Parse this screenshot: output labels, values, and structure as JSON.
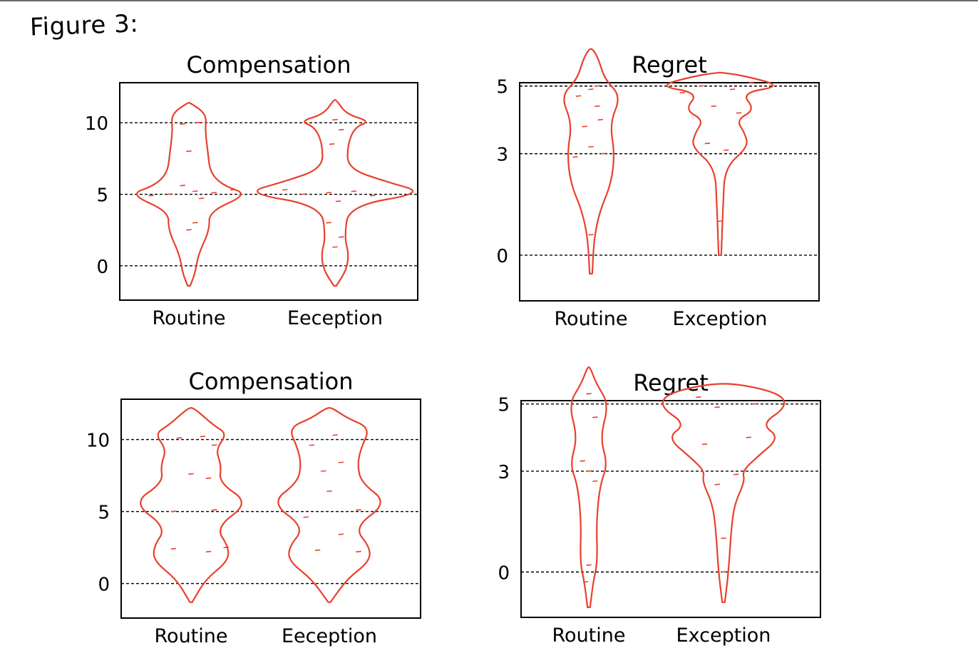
{
  "figure": {
    "label": "Figure 3:"
  },
  "colors": {
    "violin": "#e8412c",
    "axis": "#000000",
    "reference_line": "#000000"
  },
  "chart_data": [
    {
      "type": "violin",
      "title": "Compensation",
      "categories": [
        "Routine",
        "Eeception"
      ],
      "yticks": [
        0,
        5,
        10
      ],
      "ylim": [
        -2.4,
        12.8
      ],
      "grid": "dashed lines at y ticks",
      "series": [
        {
          "category": "Routine",
          "profile": [
            [
              -1.4,
              0.02
            ],
            [
              -0.5,
              0.1
            ],
            [
              0.8,
              0.15
            ],
            [
              2.5,
              0.33
            ],
            [
              3.8,
              0.32
            ],
            [
              5.0,
              0.95
            ],
            [
              5.6,
              0.55
            ],
            [
              6.5,
              0.34
            ],
            [
              8.0,
              0.3
            ],
            [
              9.5,
              0.26
            ],
            [
              10.6,
              0.28
            ],
            [
              11.4,
              0.02
            ]
          ],
          "points": [
            [
              5.0,
              -0.3
            ],
            [
              5.2,
              0.1
            ],
            [
              5.1,
              0.4
            ],
            [
              4.9,
              -0.6
            ],
            [
              5.3,
              0.7
            ],
            [
              5.6,
              -0.1
            ],
            [
              4.7,
              0.2
            ],
            [
              2.5,
              0.0
            ],
            [
              3.0,
              0.1
            ],
            [
              9.9,
              -0.1
            ],
            [
              10.0,
              0.15
            ],
            [
              8.0,
              0.0
            ]
          ]
        },
        {
          "category": "Eeception",
          "profile": [
            [
              -1.4,
              0.02
            ],
            [
              -0.3,
              0.18
            ],
            [
              0.8,
              0.22
            ],
            [
              2.0,
              0.15
            ],
            [
              4.2,
              0.22
            ],
            [
              5.1,
              1.45
            ],
            [
              5.9,
              0.8
            ],
            [
              6.8,
              0.2
            ],
            [
              8.5,
              0.2
            ],
            [
              9.7,
              0.32
            ],
            [
              10.1,
              0.56
            ],
            [
              10.6,
              0.18
            ],
            [
              11.6,
              0.02
            ]
          ],
          "points": [
            [
              5.0,
              -0.5
            ],
            [
              5.1,
              -0.1
            ],
            [
              5.2,
              0.3
            ],
            [
              4.9,
              0.6
            ],
            [
              5.3,
              -0.8
            ],
            [
              4.5,
              0.05
            ],
            [
              3.0,
              -0.1
            ],
            [
              2.0,
              0.1
            ],
            [
              1.3,
              0.0
            ],
            [
              8.5,
              -0.05
            ],
            [
              9.5,
              0.1
            ],
            [
              10.2,
              0.0
            ]
          ]
        }
      ]
    },
    {
      "type": "violin",
      "title": "Regret",
      "categories": [
        "Routine",
        "Exception"
      ],
      "yticks": [
        0,
        3,
        5
      ],
      "ylim": [
        -1.35,
        5.1
      ],
      "grid": "dashed lines at y ticks",
      "series": [
        {
          "category": "Routine",
          "profile": [
            [
              -0.55,
              0.02
            ],
            [
              0.5,
              0.05
            ],
            [
              1.3,
              0.14
            ],
            [
              2.1,
              0.32
            ],
            [
              3.0,
              0.38
            ],
            [
              3.9,
              0.3
            ],
            [
              4.7,
              0.48
            ],
            [
              5.2,
              0.22
            ],
            [
              5.8,
              0.12
            ],
            [
              6.1,
              0.03
            ]
          ],
          "points": [
            [
              4.9,
              0.0
            ],
            [
              4.7,
              -0.2
            ],
            [
              4.4,
              0.1
            ],
            [
              4.0,
              0.15
            ],
            [
              3.8,
              -0.1
            ],
            [
              3.2,
              0.0
            ],
            [
              3.0,
              0.2
            ],
            [
              2.9,
              -0.25
            ],
            [
              0.6,
              0.0
            ],
            [
              5.0,
              0.1
            ]
          ]
        },
        {
          "category": "Exception",
          "profile": [
            [
              0.0,
              0.02
            ],
            [
              1.5,
              0.05
            ],
            [
              2.6,
              0.08
            ],
            [
              3.2,
              0.45
            ],
            [
              3.6,
              0.4
            ],
            [
              4.0,
              0.26
            ],
            [
              4.3,
              0.56
            ],
            [
              4.8,
              0.34
            ],
            [
              5.0,
              1.0
            ],
            [
              5.3,
              0.4
            ],
            [
              5.4,
              0.03
            ]
          ],
          "points": [
            [
              5.0,
              -0.3
            ],
            [
              4.9,
              0.2
            ],
            [
              4.8,
              -0.6
            ],
            [
              5.1,
              0.5
            ],
            [
              4.4,
              -0.1
            ],
            [
              4.2,
              0.3
            ],
            [
              3.3,
              -0.2
            ],
            [
              3.1,
              0.1
            ],
            [
              1.0,
              0.0
            ]
          ]
        }
      ]
    },
    {
      "type": "violin",
      "title": "Compensation",
      "categories": [
        "Routine",
        "Eeception"
      ],
      "yticks": [
        0,
        5,
        10
      ],
      "ylim": [
        -2.4,
        12.8
      ],
      "grid": "dashed lines at y ticks",
      "series": [
        {
          "category": "Routine",
          "profile": [
            [
              -1.3,
              0.02
            ],
            [
              0.3,
              0.25
            ],
            [
              1.5,
              0.62
            ],
            [
              2.5,
              0.65
            ],
            [
              3.9,
              0.42
            ],
            [
              5.6,
              1.0
            ],
            [
              7.0,
              0.48
            ],
            [
              8.2,
              0.52
            ],
            [
              9.3,
              0.42
            ],
            [
              10.4,
              0.62
            ],
            [
              11.0,
              0.38
            ],
            [
              12.2,
              0.05
            ]
          ],
          "points": [
            [
              10.1,
              -0.2
            ],
            [
              10.2,
              0.2
            ],
            [
              9.6,
              0.4
            ],
            [
              7.6,
              0.0
            ],
            [
              7.3,
              0.3
            ],
            [
              5.0,
              -0.3
            ],
            [
              5.1,
              0.4
            ],
            [
              2.4,
              -0.3
            ],
            [
              2.2,
              0.3
            ],
            [
              2.5,
              0.6
            ]
          ]
        },
        {
          "category": "Eeception",
          "profile": [
            [
              -1.3,
              0.02
            ],
            [
              0.3,
              0.3
            ],
            [
              1.5,
              0.68
            ],
            [
              2.5,
              0.7
            ],
            [
              3.9,
              0.42
            ],
            [
              5.6,
              1.0
            ],
            [
              7.0,
              0.55
            ],
            [
              8.2,
              0.48
            ],
            [
              9.4,
              0.54
            ],
            [
              10.8,
              0.7
            ],
            [
              11.5,
              0.3
            ],
            [
              12.2,
              0.05
            ]
          ],
          "points": [
            [
              10.3,
              0.1
            ],
            [
              9.6,
              -0.3
            ],
            [
              8.4,
              0.2
            ],
            [
              7.8,
              -0.1
            ],
            [
              6.4,
              0.0
            ],
            [
              5.1,
              0.5
            ],
            [
              4.6,
              -0.4
            ],
            [
              3.4,
              0.2
            ],
            [
              2.3,
              -0.2
            ],
            [
              2.2,
              0.5
            ]
          ]
        }
      ]
    },
    {
      "type": "violin",
      "title": "Regret",
      "categories": [
        "Routine",
        "Exception"
      ],
      "yticks": [
        0,
        3,
        5
      ],
      "ylim": [
        -1.35,
        5.1
      ],
      "grid": "dashed lines at y ticks",
      "series": [
        {
          "category": "Routine",
          "profile": [
            [
              -1.05,
              0.02
            ],
            [
              -0.3,
              0.07
            ],
            [
              0.3,
              0.14
            ],
            [
              1.5,
              0.12
            ],
            [
              2.6,
              0.18
            ],
            [
              3.2,
              0.3
            ],
            [
              4.0,
              0.18
            ],
            [
              5.0,
              0.32
            ],
            [
              5.6,
              0.12
            ],
            [
              6.1,
              0.02
            ]
          ],
          "points": [
            [
              5.3,
              0.0
            ],
            [
              4.6,
              0.1
            ],
            [
              3.3,
              -0.1
            ],
            [
              3.0,
              0.0
            ],
            [
              2.7,
              0.1
            ],
            [
              0.2,
              0.0
            ],
            [
              -0.3,
              -0.05
            ]
          ]
        },
        {
          "category": "Exception",
          "profile": [
            [
              -0.9,
              0.02
            ],
            [
              0.0,
              0.08
            ],
            [
              1.2,
              0.12
            ],
            [
              2.0,
              0.17
            ],
            [
              2.7,
              0.34
            ],
            [
              3.0,
              0.3
            ],
            [
              3.4,
              0.52
            ],
            [
              4.0,
              0.9
            ],
            [
              4.4,
              0.6
            ],
            [
              4.9,
              1.0
            ],
            [
              5.3,
              0.92
            ],
            [
              5.6,
              0.25
            ]
          ],
          "points": [
            [
              5.2,
              -0.4
            ],
            [
              5.0,
              0.5
            ],
            [
              4.9,
              -0.1
            ],
            [
              4.0,
              0.4
            ],
            [
              3.8,
              -0.3
            ],
            [
              2.9,
              0.2
            ],
            [
              2.6,
              -0.1
            ],
            [
              1.0,
              0.0
            ],
            [
              0.0,
              0.0
            ]
          ]
        }
      ]
    }
  ]
}
